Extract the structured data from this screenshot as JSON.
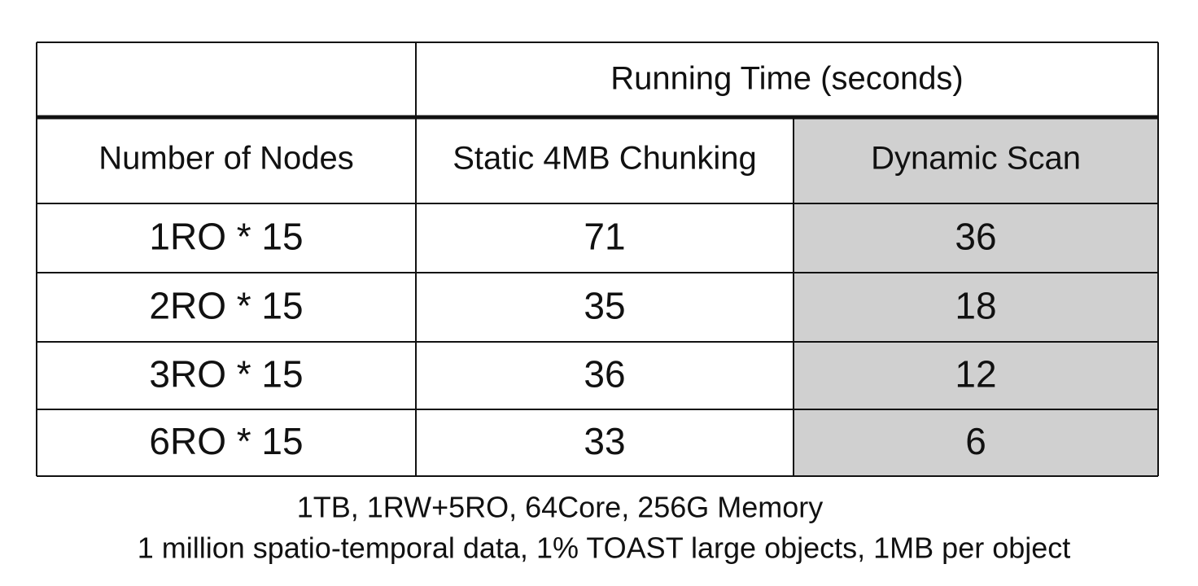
{
  "table": {
    "group_header": "Running Time (seconds)",
    "columns": [
      "Number of Nodes",
      "Static 4MB Chunking",
      "Dynamic Scan"
    ],
    "rows": [
      [
        "1RO * 15",
        71,
        36
      ],
      [
        "2RO * 15",
        35,
        18
      ],
      [
        "3RO * 15",
        36,
        12
      ],
      [
        "6RO * 15",
        33,
        6
      ]
    ]
  },
  "notes": [
    "1TB, 1RW+5RO, 64Core, 256G Memory",
    "1 million spatio-temporal data, 1% TOAST large objects, 1MB per object"
  ]
}
